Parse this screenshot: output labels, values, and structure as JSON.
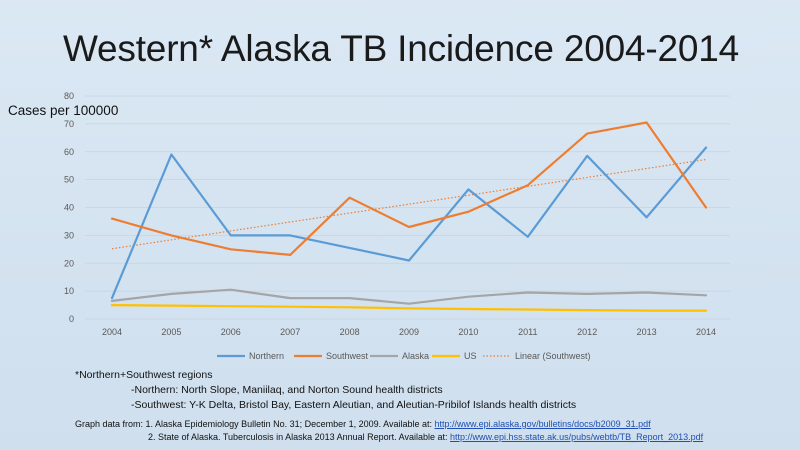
{
  "slide": {
    "title": "Western* Alaska TB Incidence 2004-2014",
    "ylabel": "Cases per 100000"
  },
  "notes": {
    "line1": "*Northern+Southwest regions",
    "line2": "-Northern: North Slope, Maniilaq, and Norton Sound health districts",
    "line3": "-Southwest: Y-K Delta, Bristol Bay, Eastern Aleutian, and Aleutian-Pribilof Islands health districts"
  },
  "sources": {
    "line1_text": "Graph data from:  1. Alaska Epidemiology Bulletin No. 31; December 1, 2009. Available at:  ",
    "line1_link": "http://www.epi.alaska.gov/bulletins/docs/b2009_31.pdf",
    "line2_text": "2. State of Alaska. Tuberculosis in Alaska 2013 Annual Report. Available at:  ",
    "line2_link": "http://www.epi.hss.state.ak.us/pubs/webtb/TB_Report_2013.pdf"
  },
  "chart_data": {
    "type": "line",
    "title": "Western* Alaska TB Incidence 2004-2014",
    "ylabel": "Cases per 100000",
    "xlabel": "",
    "categories": [
      "2004",
      "2005",
      "2006",
      "2007",
      "2008",
      "2009",
      "2010",
      "2011",
      "2012",
      "2013",
      "2014"
    ],
    "ylim": [
      0,
      80
    ],
    "yticks": [
      0,
      10,
      20,
      30,
      40,
      50,
      60,
      70,
      80
    ],
    "grid": true,
    "legend_position": "bottom",
    "series": [
      {
        "name": "Northern",
        "color": "#5b9bd5",
        "values": [
          7.5,
          59,
          30,
          30,
          25.5,
          21,
          46.5,
          29.5,
          58.5,
          36.5,
          61.5
        ]
      },
      {
        "name": "Southwest",
        "color": "#ed7d31",
        "values": [
          36,
          30,
          25,
          23,
          43.5,
          33,
          38.5,
          48,
          66.5,
          70.5,
          40
        ]
      },
      {
        "name": "Alaska",
        "color": "#a5a5a5",
        "values": [
          6.5,
          9,
          10.5,
          7.5,
          7.5,
          5.5,
          8,
          9.5,
          9,
          9.5,
          8.5
        ]
      },
      {
        "name": "US",
        "color": "#ffc000",
        "values": [
          5,
          4.8,
          4.6,
          4.4,
          4.2,
          3.8,
          3.6,
          3.4,
          3.2,
          3.0,
          3.0
        ]
      }
    ],
    "trendline": {
      "name": "Linear (Southwest)",
      "color": "#ed7d31",
      "style": "dotted",
      "start": 25.2,
      "end": 57.2
    }
  }
}
